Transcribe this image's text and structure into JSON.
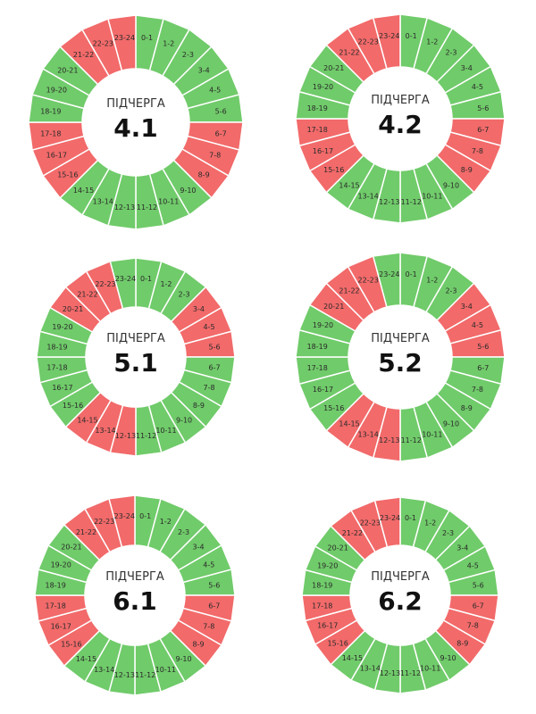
{
  "colors": {
    "off": "#f26a6a",
    "on": "#70cb6a",
    "separator": "#ffffff"
  },
  "categories": [
    "0-1",
    "1-2",
    "2-3",
    "3-4",
    "4-5",
    "5-6",
    "6-7",
    "7-8",
    "8-9",
    "9-10",
    "10-11",
    "11-12",
    "12-13",
    "13-14",
    "14-15",
    "15-16",
    "16-17",
    "17-18",
    "18-19",
    "19-20",
    "20-21",
    "21-22",
    "22-23",
    "23-24"
  ],
  "chart_data": [
    {
      "type": "pie",
      "title": "ПІДЧЕРГА",
      "number": "4.1",
      "off_hours": [
        "6-7",
        "7-8",
        "8-9",
        "15-16",
        "16-17",
        "17-18",
        "21-22",
        "22-23",
        "23-24"
      ],
      "values": [
        "on",
        "on",
        "on",
        "on",
        "on",
        "on",
        "off",
        "off",
        "off",
        "on",
        "on",
        "on",
        "on",
        "on",
        "on",
        "off",
        "off",
        "off",
        "on",
        "on",
        "on",
        "off",
        "off",
        "off"
      ]
    },
    {
      "type": "pie",
      "title": "ПІДЧЕРГА",
      "number": "4.2",
      "off_hours": [
        "6-7",
        "7-8",
        "8-9",
        "15-16",
        "16-17",
        "17-18",
        "21-22",
        "22-23",
        "23-24"
      ],
      "values": [
        "on",
        "on",
        "on",
        "on",
        "on",
        "on",
        "off",
        "off",
        "off",
        "on",
        "on",
        "on",
        "on",
        "on",
        "on",
        "off",
        "off",
        "off",
        "on",
        "on",
        "on",
        "off",
        "off",
        "off"
      ]
    },
    {
      "type": "pie",
      "title": "ПІДЧЕРГА",
      "number": "5.1",
      "off_hours": [
        "3-4",
        "4-5",
        "5-6",
        "12-13",
        "13-14",
        "14-15",
        "20-21",
        "21-22",
        "22-23"
      ],
      "values": [
        "on",
        "on",
        "on",
        "off",
        "off",
        "off",
        "on",
        "on",
        "on",
        "on",
        "on",
        "on",
        "off",
        "off",
        "off",
        "on",
        "on",
        "on",
        "on",
        "on",
        "off",
        "off",
        "off",
        "on"
      ]
    },
    {
      "type": "pie",
      "title": "ПІДЧЕРГА",
      "number": "5.2",
      "off_hours": [
        "3-4",
        "4-5",
        "5-6",
        "12-13",
        "13-14",
        "14-15",
        "20-21",
        "21-22",
        "22-23"
      ],
      "values": [
        "on",
        "on",
        "on",
        "off",
        "off",
        "off",
        "on",
        "on",
        "on",
        "on",
        "on",
        "on",
        "off",
        "off",
        "off",
        "on",
        "on",
        "on",
        "on",
        "on",
        "off",
        "off",
        "off",
        "on"
      ]
    },
    {
      "type": "pie",
      "title": "ПІДЧЕРГА",
      "number": "6.1",
      "off_hours": [
        "6-7",
        "7-8",
        "8-9",
        "15-16",
        "16-17",
        "17-18",
        "21-22",
        "22-23",
        "23-24"
      ],
      "values": [
        "on",
        "on",
        "on",
        "on",
        "on",
        "on",
        "off",
        "off",
        "off",
        "on",
        "on",
        "on",
        "on",
        "on",
        "on",
        "off",
        "off",
        "off",
        "on",
        "on",
        "on",
        "off",
        "off",
        "off"
      ]
    },
    {
      "type": "pie",
      "title": "ПІДЧЕРГА",
      "number": "6.2",
      "off_hours": [
        "6-7",
        "7-8",
        "8-9",
        "15-16",
        "16-17",
        "17-18",
        "21-22",
        "22-23",
        "23-24"
      ],
      "values": [
        "on",
        "on",
        "on",
        "on",
        "on",
        "on",
        "off",
        "off",
        "off",
        "on",
        "on",
        "on",
        "on",
        "on",
        "on",
        "off",
        "off",
        "off",
        "on",
        "on",
        "on",
        "off",
        "off",
        "off"
      ]
    }
  ]
}
